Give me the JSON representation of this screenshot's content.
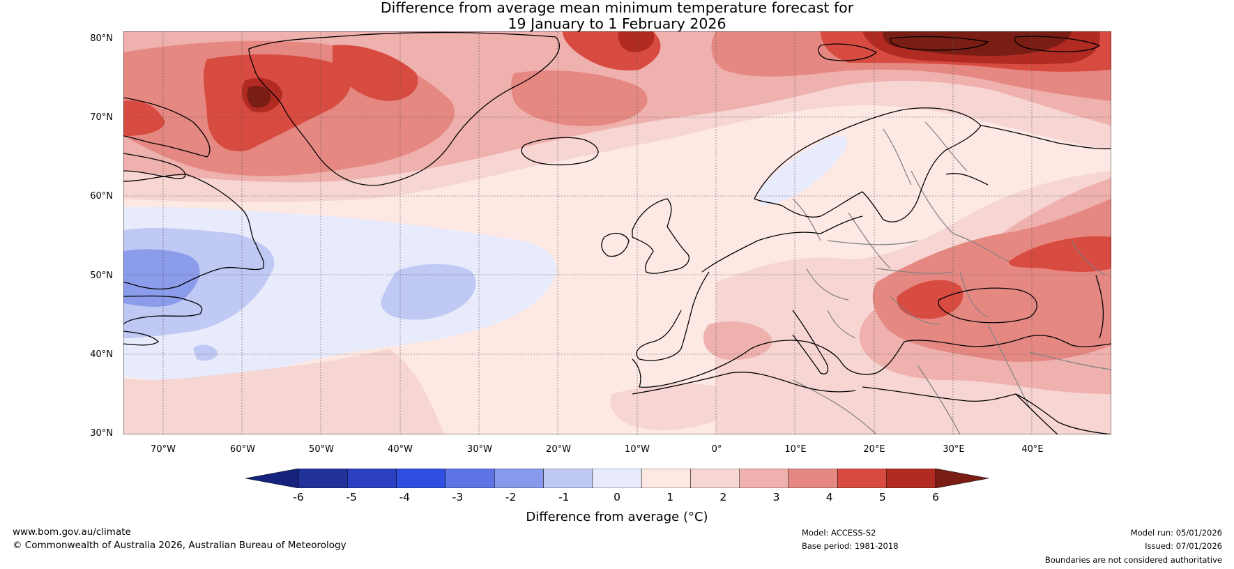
{
  "title": {
    "line1": "Difference from average mean minimum temperature forecast for",
    "line2": "19 January to 1 February 2026"
  },
  "map": {
    "lat_labels": [
      "80°N",
      "70°N",
      "60°N",
      "50°N",
      "40°N",
      "30°N"
    ],
    "lon_labels": [
      "70°W",
      "60°W",
      "50°W",
      "40°W",
      "30°W",
      "20°W",
      "10°W",
      "0°",
      "10°E",
      "20°E",
      "30°E",
      "40°E"
    ],
    "lat_range": [
      30,
      81
    ],
    "lon_range": [
      -75,
      50
    ],
    "colors": {
      "ocean_base": "#fde8e4",
      "pos_1_2": "#f6d5d3",
      "pos_2_3": "#efb1ae",
      "pos_3_4": "#e68882",
      "pos_4_5": "#d84b41",
      "pos_5_6": "#b12b23",
      "pos_gt6": "#7a1d15",
      "neg_0_1": "#e8ebfb",
      "neg_1_2": "#c0c8f4",
      "neg_2_3": "#8a9cea",
      "coast": "#000000",
      "border": "#808080",
      "grid": "#555555"
    }
  },
  "colorbar": {
    "tick_labels": [
      "-6",
      "-5",
      "-4",
      "-3",
      "-2",
      "-1",
      "0",
      "1",
      "2",
      "3",
      "4",
      "5",
      "6"
    ],
    "colors": [
      "#223198",
      "#2b3fc1",
      "#2e4fdf",
      "#5d74e4",
      "#8799ea",
      "#c0c8f4",
      "#e8ebfb",
      "#fde8e4",
      "#f6d5d3",
      "#efb1ae",
      "#e68882",
      "#d84b41",
      "#b12b23"
    ],
    "under_color": "#16237d",
    "over_color": "#7a1d15",
    "title": "Difference from average (°C)"
  },
  "footer": {
    "url": "www.bom.gov.au/climate",
    "copyright": "© Commonwealth of Australia 2026, Australian Bureau of Meteorology",
    "model": "Model: ACCESS-S2",
    "base_period": "Base period: 1981-2018",
    "model_run": "Model run: 05/01/2026",
    "issued": "Issued: 07/01/2026",
    "disclaimer": "Boundaries are not considered authoritative"
  }
}
